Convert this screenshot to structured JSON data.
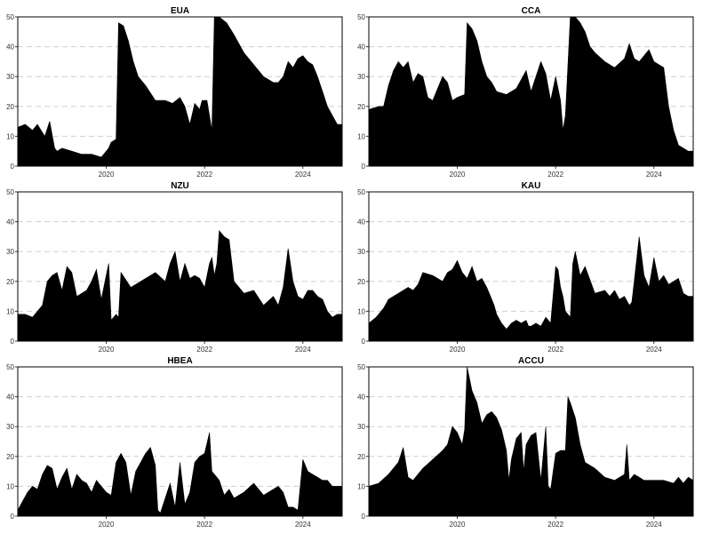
{
  "colors": {
    "fill": "#000000",
    "grid": "#cfcfcf",
    "background": "#ffffff"
  },
  "chart_data": [
    {
      "type": "area",
      "title": "EUA",
      "xlim": [
        2018.2,
        2024.8
      ],
      "ylim": [
        0,
        50
      ],
      "yticks": [
        0,
        10,
        20,
        30,
        40,
        50
      ],
      "xticks": [
        2020,
        2022,
        2024
      ],
      "grid": "horizontal dashed",
      "series": [
        {
          "x": [
            2018.2,
            2018.35,
            2018.5,
            2018.6,
            2018.75,
            2018.85,
            2018.95,
            2019.0,
            2019.1,
            2019.3,
            2019.5,
            2019.7,
            2019.9,
            2020.05,
            2020.1,
            2020.2,
            2020.25,
            2020.35,
            2020.45,
            2020.55,
            2020.65,
            2020.8,
            2021.0,
            2021.2,
            2021.35,
            2021.5,
            2021.6,
            2021.7,
            2021.8,
            2021.9,
            2021.95,
            2022.05,
            2022.15,
            2022.2,
            2022.3,
            2022.45,
            2022.6,
            2022.8,
            2023.0,
            2023.2,
            2023.4,
            2023.5,
            2023.6,
            2023.7,
            2023.8,
            2023.9,
            2024.0,
            2024.1,
            2024.2,
            2024.3,
            2024.4,
            2024.5,
            2024.6,
            2024.7,
            2024.8
          ],
          "y": [
            13,
            14,
            12,
            14,
            10,
            15,
            6,
            5,
            6,
            5,
            4,
            4,
            3,
            6,
            8,
            9,
            48,
            47,
            42,
            35,
            30,
            27,
            22,
            22,
            21,
            23,
            20,
            14,
            21,
            19,
            22,
            22,
            12,
            50,
            50,
            48,
            44,
            38,
            34,
            30,
            28,
            28,
            30,
            35,
            33,
            36,
            37,
            35,
            34,
            30,
            25,
            20,
            17,
            14,
            14
          ]
        }
      ]
    },
    {
      "type": "area",
      "title": "CCA",
      "xlim": [
        2018.2,
        2024.8
      ],
      "ylim": [
        0,
        50
      ],
      "yticks": [
        0,
        10,
        20,
        30,
        40,
        50
      ],
      "xticks": [
        2020,
        2022,
        2024
      ],
      "grid": "horizontal dashed",
      "series": [
        {
          "x": [
            2018.2,
            2018.4,
            2018.5,
            2018.6,
            2018.7,
            2018.8,
            2018.9,
            2019.0,
            2019.1,
            2019.2,
            2019.3,
            2019.4,
            2019.5,
            2019.6,
            2019.7,
            2019.8,
            2019.9,
            2020.0,
            2020.15,
            2020.2,
            2020.3,
            2020.4,
            2020.5,
            2020.6,
            2020.7,
            2020.8,
            2021.0,
            2021.2,
            2021.4,
            2021.5,
            2021.6,
            2021.7,
            2021.8,
            2021.9,
            2022.0,
            2022.1,
            2022.15,
            2022.2,
            2022.3,
            2022.4,
            2022.5,
            2022.6,
            2022.7,
            2022.8,
            2023.0,
            2023.2,
            2023.4,
            2023.5,
            2023.6,
            2023.7,
            2023.8,
            2023.9,
            2024.0,
            2024.1,
            2024.2,
            2024.3,
            2024.4,
            2024.5,
            2024.6,
            2024.7,
            2024.8
          ],
          "y": [
            19,
            20,
            20,
            27,
            32,
            35,
            33,
            35,
            28,
            31,
            30,
            23,
            22,
            26,
            30,
            28,
            22,
            23,
            24,
            48,
            46,
            42,
            35,
            30,
            28,
            25,
            24,
            26,
            32,
            25,
            30,
            35,
            31,
            22,
            30,
            22,
            12,
            17,
            50,
            50,
            48,
            45,
            40,
            38,
            35,
            33,
            36,
            41,
            36,
            35,
            37,
            39,
            35,
            34,
            33,
            20,
            12,
            7,
            6,
            5,
            5
          ]
        }
      ]
    },
    {
      "type": "area",
      "title": "NZU",
      "xlim": [
        2018.2,
        2024.8
      ],
      "ylim": [
        0,
        50
      ],
      "yticks": [
        0,
        10,
        20,
        30,
        40,
        50
      ],
      "xticks": [
        2020,
        2022,
        2024
      ],
      "grid": "horizontal dashed",
      "series": [
        {
          "x": [
            2018.2,
            2018.35,
            2018.5,
            2018.6,
            2018.7,
            2018.8,
            2018.9,
            2019.0,
            2019.1,
            2019.2,
            2019.3,
            2019.4,
            2019.5,
            2019.6,
            2019.7,
            2019.8,
            2019.9,
            2020.0,
            2020.05,
            2020.1,
            2020.2,
            2020.25,
            2020.3,
            2020.5,
            2020.7,
            2020.9,
            2021.0,
            2021.2,
            2021.3,
            2021.4,
            2021.5,
            2021.6,
            2021.7,
            2021.8,
            2021.9,
            2022.0,
            2022.1,
            2022.15,
            2022.2,
            2022.25,
            2022.3,
            2022.4,
            2022.5,
            2022.6,
            2022.7,
            2022.8,
            2023.0,
            2023.2,
            2023.4,
            2023.5,
            2023.6,
            2023.7,
            2023.8,
            2023.9,
            2024.0,
            2024.1,
            2024.2,
            2024.3,
            2024.4,
            2024.5,
            2024.6,
            2024.7,
            2024.8
          ],
          "y": [
            9,
            9,
            8,
            10,
            12,
            20,
            22,
            23,
            17,
            25,
            23,
            15,
            16,
            17,
            20,
            24,
            14,
            22,
            26,
            7,
            9,
            8,
            23,
            18,
            20,
            22,
            23,
            20,
            26,
            30,
            20,
            26,
            21,
            22,
            21,
            18,
            26,
            28,
            22,
            26,
            37,
            35,
            34,
            20,
            18,
            16,
            17,
            12,
            15,
            12,
            18,
            31,
            20,
            15,
            14,
            17,
            17,
            15,
            14,
            10,
            8,
            9,
            9
          ]
        }
      ]
    },
    {
      "type": "area",
      "title": "KAU",
      "xlim": [
        2018.2,
        2024.8
      ],
      "ylim": [
        0,
        50
      ],
      "yticks": [
        0,
        10,
        20,
        30,
        40,
        50
      ],
      "xticks": [
        2020,
        2022,
        2024
      ],
      "grid": "horizontal dashed",
      "series": [
        {
          "x": [
            2018.2,
            2018.35,
            2018.5,
            2018.6,
            2018.8,
            2019.0,
            2019.1,
            2019.2,
            2019.3,
            2019.5,
            2019.7,
            2019.8,
            2019.9,
            2020.0,
            2020.1,
            2020.2,
            2020.3,
            2020.4,
            2020.5,
            2020.6,
            2020.7,
            2020.75,
            2020.8,
            2020.9,
            2021.0,
            2021.1,
            2021.2,
            2021.3,
            2021.4,
            2021.45,
            2021.5,
            2021.6,
            2021.7,
            2021.8,
            2021.9,
            2022.0,
            2022.05,
            2022.1,
            2022.15,
            2022.2,
            2022.3,
            2022.35,
            2022.4,
            2022.5,
            2022.6,
            2022.8,
            2023.0,
            2023.1,
            2023.2,
            2023.3,
            2023.4,
            2023.5,
            2023.55,
            2023.6,
            2023.7,
            2023.8,
            2023.9,
            2024.0,
            2024.1,
            2024.2,
            2024.3,
            2024.4,
            2024.5,
            2024.6,
            2024.7,
            2024.8
          ],
          "y": [
            6,
            8,
            11,
            14,
            16,
            18,
            17,
            19,
            23,
            22,
            20,
            23,
            24,
            27,
            23,
            21,
            25,
            20,
            21,
            18,
            14,
            12,
            9,
            6,
            4,
            6,
            7,
            6,
            7,
            5,
            5,
            6,
            5,
            8,
            6,
            25,
            24,
            18,
            15,
            10,
            8,
            26,
            30,
            22,
            25,
            16,
            17,
            15,
            17,
            14,
            15,
            12,
            13,
            20,
            35,
            22,
            18,
            28,
            20,
            22,
            19,
            20,
            21,
            16,
            15,
            15
          ]
        }
      ]
    },
    {
      "type": "area",
      "title": "HBEA",
      "xlim": [
        2018.2,
        2024.8
      ],
      "ylim": [
        0,
        50
      ],
      "yticks": [
        0,
        10,
        20,
        30,
        40,
        50
      ],
      "xticks": [
        2020,
        2022,
        2024
      ],
      "grid": "horizontal dashed",
      "series": [
        {
          "x": [
            2018.2,
            2018.3,
            2018.4,
            2018.5,
            2018.6,
            2018.7,
            2018.8,
            2018.9,
            2019.0,
            2019.1,
            2019.2,
            2019.3,
            2019.4,
            2019.5,
            2019.6,
            2019.7,
            2019.8,
            2019.9,
            2020.0,
            2020.1,
            2020.2,
            2020.3,
            2020.4,
            2020.5,
            2020.6,
            2020.7,
            2020.8,
            2020.9,
            2021.0,
            2021.05,
            2021.1,
            2021.2,
            2021.3,
            2021.4,
            2021.5,
            2021.6,
            2021.7,
            2021.8,
            2021.9,
            2022.0,
            2022.1,
            2022.15,
            2022.2,
            2022.3,
            2022.4,
            2022.5,
            2022.6,
            2022.8,
            2023.0,
            2023.2,
            2023.4,
            2023.5,
            2023.6,
            2023.7,
            2023.8,
            2023.9,
            2024.0,
            2024.1,
            2024.2,
            2024.3,
            2024.4,
            2024.5,
            2024.6,
            2024.7,
            2024.8
          ],
          "y": [
            2,
            5,
            8,
            10,
            9,
            14,
            17,
            16,
            9,
            13,
            16,
            9,
            14,
            12,
            11,
            8,
            12,
            10,
            8,
            7,
            18,
            21,
            18,
            7,
            15,
            18,
            21,
            23,
            17,
            2,
            1,
            6,
            11,
            3,
            18,
            4,
            8,
            18,
            20,
            21,
            28,
            15,
            14,
            12,
            7,
            9,
            6,
            8,
            11,
            7,
            9,
            10,
            8,
            3,
            3,
            2,
            19,
            15,
            14,
            13,
            12,
            12,
            10,
            10,
            10
          ]
        }
      ]
    },
    {
      "type": "area",
      "title": "ACCU",
      "xlim": [
        2018.2,
        2024.8
      ],
      "ylim": [
        0,
        50
      ],
      "yticks": [
        0,
        10,
        20,
        30,
        40,
        50
      ],
      "xticks": [
        2020,
        2022,
        2024
      ],
      "grid": "horizontal dashed",
      "series": [
        {
          "x": [
            2018.2,
            2018.4,
            2018.6,
            2018.8,
            2018.9,
            2019.0,
            2019.1,
            2019.2,
            2019.3,
            2019.5,
            2019.7,
            2019.8,
            2019.9,
            2020.0,
            2020.1,
            2020.15,
            2020.2,
            2020.3,
            2020.4,
            2020.5,
            2020.6,
            2020.7,
            2020.8,
            2020.9,
            2021.0,
            2021.05,
            2021.1,
            2021.2,
            2021.3,
            2021.35,
            2021.4,
            2021.5,
            2021.6,
            2021.7,
            2021.8,
            2021.85,
            2021.9,
            2022.0,
            2022.1,
            2022.2,
            2022.25,
            2022.3,
            2022.4,
            2022.5,
            2022.6,
            2022.8,
            2023.0,
            2023.2,
            2023.4,
            2023.45,
            2023.5,
            2023.6,
            2023.7,
            2023.8,
            2024.0,
            2024.2,
            2024.4,
            2024.5,
            2024.6,
            2024.7,
            2024.8
          ],
          "y": [
            10,
            11,
            14,
            18,
            23,
            13,
            12,
            14,
            16,
            19,
            22,
            24,
            30,
            28,
            24,
            29,
            50,
            42,
            38,
            31,
            34,
            35,
            33,
            29,
            22,
            12,
            19,
            26,
            28,
            15,
            24,
            27,
            28,
            12,
            30,
            10,
            9,
            21,
            22,
            22,
            40,
            38,
            33,
            24,
            18,
            16,
            13,
            12,
            14,
            24,
            12,
            14,
            13,
            12,
            12,
            12,
            11,
            13,
            11,
            13,
            12
          ]
        }
      ]
    }
  ]
}
